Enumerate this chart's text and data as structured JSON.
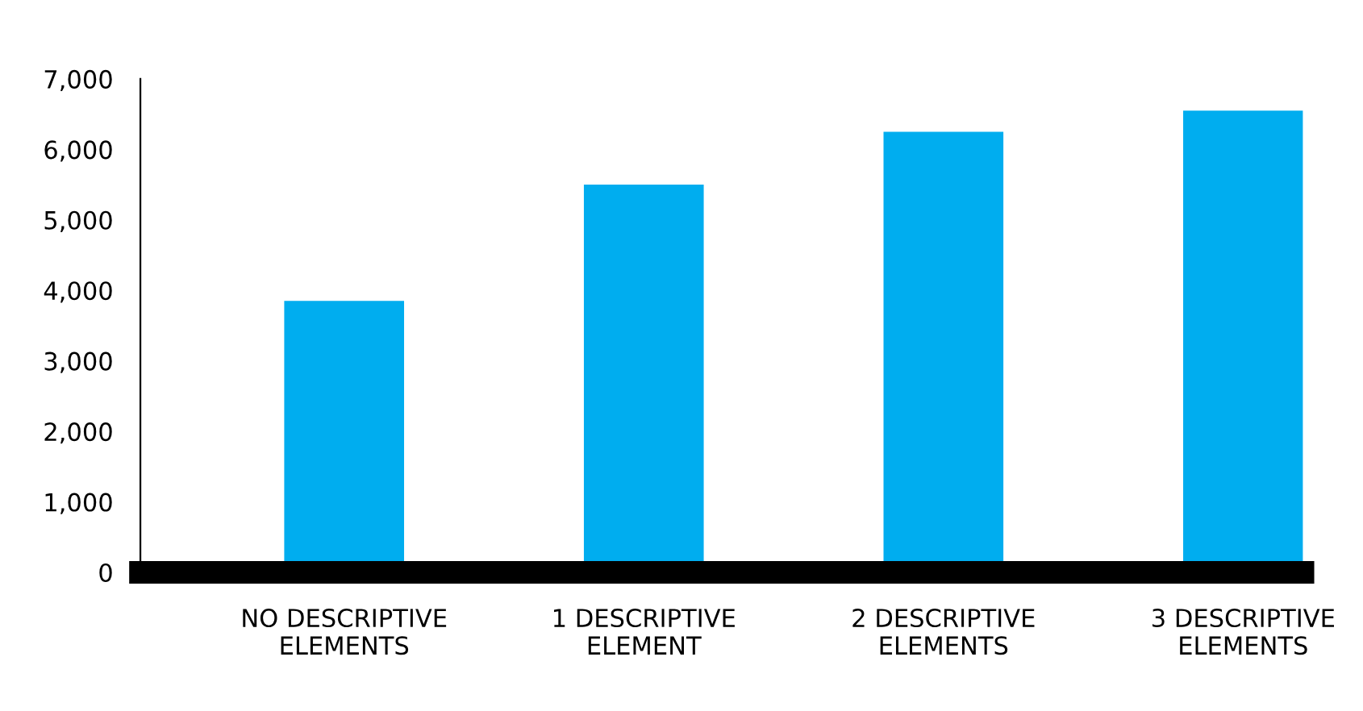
{
  "chart_data": {
    "type": "bar",
    "categories": [
      "NO DESCRIPTIVE\nELEMENTS",
      "1 DESCRIPTIVE\nELEMENT",
      "2 DESCRIPTIVE\nELEMENTS",
      "3 DESCRIPTIVE\nELEMENTS"
    ],
    "values": [
      3850,
      5500,
      6250,
      6550
    ],
    "color": "#00adef",
    "ylim": [
      0,
      7000
    ],
    "yticks": [
      {
        "value": 0,
        "label": "0"
      },
      {
        "value": 1000,
        "label": "1,000"
      },
      {
        "value": 2000,
        "label": "2,000"
      },
      {
        "value": 3000,
        "label": "3,000"
      },
      {
        "value": 4000,
        "label": "4,000"
      },
      {
        "value": 5000,
        "label": "5,000"
      },
      {
        "value": 6000,
        "label": "6,000"
      },
      {
        "value": 7000,
        "label": "7,000"
      }
    ],
    "grid": false,
    "legend": false
  }
}
